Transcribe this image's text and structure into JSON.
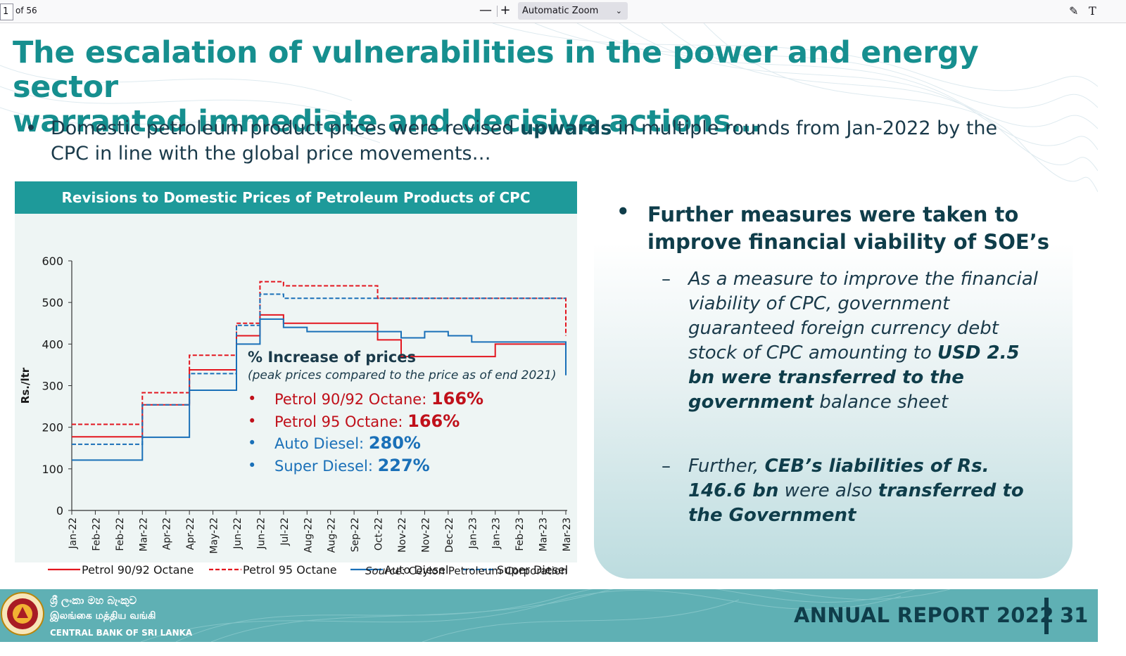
{
  "viewer": {
    "page_number": "1",
    "page_count": "of 56",
    "zoom_out": "—",
    "zoom_in": "+",
    "zoom_label": "Automatic Zoom",
    "highlight_icon": "pen-icon",
    "text_icon": "text-tool-icon"
  },
  "slide": {
    "title_line1": "The escalation of vulnerabilities in the power and energy sector",
    "title_line2": "warranted immediate and decisive actions…",
    "intro_before": "Domestic petroleum product prices were revised ",
    "intro_bold": "upwards",
    "intro_after": " in multiple rounds from Jan-2022 by the CPC in line with the global price movements…"
  },
  "chart_card": {
    "header": "Revisions to Domestic Prices of Petroleum Products of CPC",
    "annotation_title": "% Increase of prices",
    "annotation_subtitle": "(peak prices compared to the price as of end 2021)",
    "annotations": [
      {
        "label": "Petrol 90/92 Octane: ",
        "value": "166%",
        "color": "red"
      },
      {
        "label": "Petrol 95 Octane: ",
        "value": "166%",
        "color": "red"
      },
      {
        "label": "Auto Diesel: ",
        "value": "280%",
        "color": "blue"
      },
      {
        "label": "Super Diesel: ",
        "value": "227%",
        "color": "blue"
      }
    ],
    "source_label": "Source",
    "source_text": ": Ceylon Petroleum Corporation"
  },
  "chart_data": {
    "type": "line",
    "title": "Revisions to Domestic Prices of Petroleum Products of CPC",
    "ylabel": "Rs./ltr",
    "xlabel": "",
    "ylim": [
      0,
      600
    ],
    "yticks": [
      0,
      100,
      200,
      300,
      400,
      500,
      600
    ],
    "categories": [
      "Jan-22",
      "Feb-22",
      "Feb-22",
      "Mar-22",
      "Apr-22",
      "Apr-22",
      "May-22",
      "Jun-22",
      "Jun-22",
      "Jul-22",
      "Aug-22",
      "Aug-22",
      "Sep-22",
      "Oct-22",
      "Nov-22",
      "Nov-22",
      "Dec-22",
      "Jan-23",
      "Jan-23",
      "Feb-23",
      "Mar-23",
      "Mar-23"
    ],
    "step": true,
    "legend_position": "bottom",
    "series": [
      {
        "name": "Petrol 90/92 Octane",
        "color": "#e3161f",
        "dash": false,
        "values": [
          177,
          177,
          177,
          254,
          254,
          338,
          338,
          420,
          470,
          450,
          450,
          450,
          450,
          410,
          370,
          370,
          370,
          370,
          400,
          400,
          400,
          400
        ]
      },
      {
        "name": "Petrol 95 Octane",
        "color": "#e3161f",
        "dash": true,
        "values": [
          207,
          207,
          207,
          283,
          283,
          373,
          373,
          450,
          550,
          540,
          540,
          540,
          540,
          510,
          510,
          510,
          510,
          510,
          510,
          510,
          510,
          420
        ]
      },
      {
        "name": "Auto Diesel",
        "color": "#1a70b8",
        "dash": false,
        "values": [
          121,
          121,
          121,
          176,
          176,
          289,
          289,
          400,
          460,
          440,
          430,
          430,
          430,
          430,
          415,
          430,
          420,
          405,
          405,
          405,
          405,
          325
        ]
      },
      {
        "name": "Super Diesel",
        "color": "#1a70b8",
        "dash": true,
        "values": [
          159,
          159,
          159,
          254,
          254,
          329,
          329,
          445,
          520,
          510,
          510,
          510,
          510,
          510,
          510,
          510,
          510,
          510,
          510,
          510,
          510,
          510
        ]
      }
    ]
  },
  "right_card": {
    "heading": "Further measures were taken to improve financial viability of SOE’s",
    "item1_plain": "As a measure to improve the financial viability of CPC, government guaranteed foreign currency debt stock of CPC amounting to ",
    "item1_bold": "USD 2.5 bn were transferred to the government",
    "item1_end": " balance sheet",
    "item2_plain1": "Further, ",
    "item2_bold1": "CEB’s liabilities of Rs. 146.6 bn",
    "item2_plain2": " were also ",
    "item2_bold2": "transferred to the Government"
  },
  "footer": {
    "sinhala": "ශ්‍රී ලංකා මහ බැංකුව",
    "tamil": "இலங்கை மத்திய வங்கி",
    "english": "CENTRAL BANK OF SRI LANKA",
    "report": "ANNUAL REPORT 2022",
    "page": "31"
  }
}
